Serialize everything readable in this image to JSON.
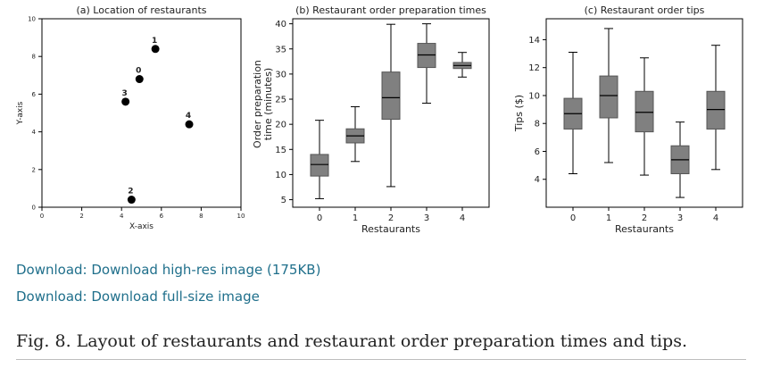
{
  "links": {
    "highres": "Download: Download high-res image (175KB)",
    "fullsize": "Download: Download full-size image"
  },
  "caption": "Fig. 8. Layout of restaurants and restaurant order preparation times and tips.",
  "colors": {
    "box_fill": "#808080",
    "point": "#000000",
    "link": "#1f6f8b"
  },
  "chart_data": [
    {
      "type": "scatter",
      "title": "(a) Location of restaurants",
      "xlabel": "X-axis",
      "ylabel": "Y-axis",
      "xlim": [
        0,
        10
      ],
      "ylim": [
        0,
        10
      ],
      "xticks": [
        0,
        2,
        4,
        6,
        8,
        10
      ],
      "yticks": [
        0,
        2,
        4,
        6,
        8,
        10
      ],
      "points": [
        {
          "label": "0",
          "x": 4.9,
          "y": 6.8
        },
        {
          "label": "1",
          "x": 5.7,
          "y": 8.4
        },
        {
          "label": "2",
          "x": 4.5,
          "y": 0.4
        },
        {
          "label": "3",
          "x": 4.2,
          "y": 5.6
        },
        {
          "label": "4",
          "x": 7.4,
          "y": 4.4
        }
      ]
    },
    {
      "type": "box",
      "title": "(b) Restaurant order preparation times",
      "xlabel": "Restaurants",
      "ylabel": "Order preparation time (minutes)",
      "ylim": [
        3.5,
        41
      ],
      "yticks": [
        5,
        10,
        15,
        20,
        25,
        30,
        35,
        40
      ],
      "categories": [
        "0",
        "1",
        "2",
        "3",
        "4"
      ],
      "boxes": [
        {
          "whislo": 5.2,
          "q1": 9.7,
          "med": 12.0,
          "q3": 14.0,
          "whishi": 20.8
        },
        {
          "whislo": 12.6,
          "q1": 16.3,
          "med": 17.7,
          "q3": 19.1,
          "whishi": 23.5
        },
        {
          "whislo": 7.6,
          "q1": 21.0,
          "med": 25.3,
          "q3": 30.4,
          "whishi": 39.9
        },
        {
          "whislo": 24.2,
          "q1": 31.3,
          "med": 33.8,
          "q3": 36.1,
          "whishi": 40.0
        },
        {
          "whislo": 29.4,
          "q1": 31.1,
          "med": 31.7,
          "q3": 32.3,
          "whishi": 34.3
        }
      ]
    },
    {
      "type": "box",
      "title": "(c) Restaurant order tips",
      "xlabel": "Restaurants",
      "ylabel": "Tips ($)",
      "ylim": [
        2.0,
        15.5
      ],
      "yticks": [
        4,
        6,
        8,
        10,
        12,
        14
      ],
      "categories": [
        "0",
        "1",
        "2",
        "3",
        "4"
      ],
      "boxes": [
        {
          "whislo": 4.4,
          "q1": 7.6,
          "med": 8.7,
          "q3": 9.8,
          "whishi": 13.1
        },
        {
          "whislo": 5.2,
          "q1": 8.4,
          "med": 10.0,
          "q3": 11.4,
          "whishi": 14.8
        },
        {
          "whislo": 4.3,
          "q1": 7.4,
          "med": 8.8,
          "q3": 10.3,
          "whishi": 12.7
        },
        {
          "whislo": 2.7,
          "q1": 4.4,
          "med": 5.4,
          "q3": 6.4,
          "whishi": 8.1
        },
        {
          "whislo": 4.7,
          "q1": 7.6,
          "med": 9.0,
          "q3": 10.3,
          "whishi": 13.6
        }
      ]
    }
  ]
}
